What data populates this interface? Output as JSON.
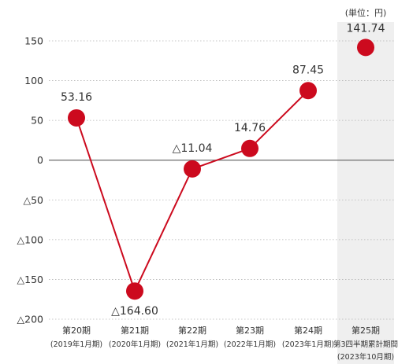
{
  "chart_data": {
    "type": "line",
    "unit_note": "(単位：円)",
    "categories": [
      {
        "label": "第20期",
        "sub": "(2019年1月期)"
      },
      {
        "label": "第21期",
        "sub": "(2020年1月期)"
      },
      {
        "label": "第22期",
        "sub": "(2021年1月期)"
      },
      {
        "label": "第23期",
        "sub": "(2022年1月期)"
      },
      {
        "label": "第24期",
        "sub": "(2023年1月期)"
      },
      {
        "label": "第25期",
        "sub": "第3四半期累計期間",
        "sub2": "(2023年10月期)"
      }
    ],
    "series": [
      {
        "values": [
          53.16,
          -164.6,
          -11.04,
          14.76,
          87.45,
          141.74
        ],
        "labels": [
          "53.16",
          "△164.60",
          "△11.04",
          "14.76",
          "87.45",
          "141.74"
        ],
        "connected": [
          true,
          true,
          true,
          true,
          true,
          false
        ],
        "color": "#cc0a1e"
      }
    ],
    "ylim": [
      -200,
      150
    ],
    "yticks": [
      {
        "value": 150,
        "label": "150"
      },
      {
        "value": 100,
        "label": "100"
      },
      {
        "value": 50,
        "label": "50"
      },
      {
        "value": 0,
        "label": "0"
      },
      {
        "value": -50,
        "label": "△50"
      },
      {
        "value": -100,
        "label": "△100"
      },
      {
        "value": -150,
        "label": "△150"
      },
      {
        "value": -200,
        "label": "△200"
      }
    ],
    "highlight_category_index": 5,
    "highlight_color": "#efefef",
    "grid": true,
    "line_color": "#cc0a1e"
  }
}
